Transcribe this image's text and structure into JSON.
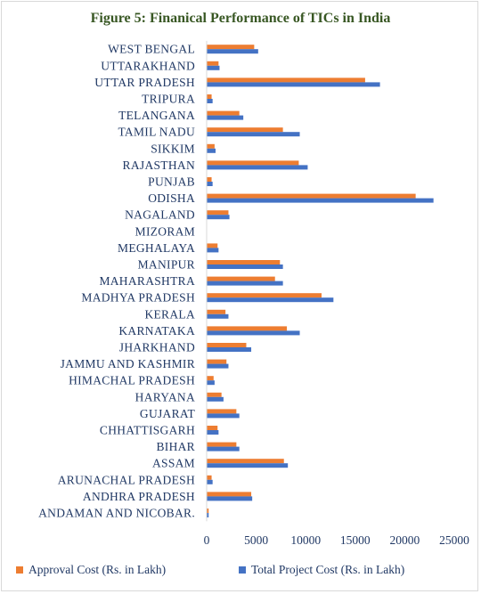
{
  "chart_data": {
    "type": "bar",
    "orientation": "horizontal",
    "title": "Figure 5: Finanical Performance of TICs  in India",
    "categories": [
      "ANDAMAN AND NICOBAR.",
      "ANDHRA PRADESH",
      "ARUNACHAL PRADESH",
      "ASSAM",
      "BIHAR",
      "CHHATTISGARH",
      "GUJARAT",
      "HARYANA",
      "HIMACHAL PRADESH",
      "JAMMU AND KASHMIR",
      "JHARKHAND",
      "KARNATAKA",
      "KERALA",
      "MADHYA PRADESH",
      "MAHARASHTRA",
      "MANIPUR",
      "MEGHALAYA",
      "MIZORAM",
      "NAGALAND",
      "ODISHA",
      "PUNJAB",
      "RAJASTHAN",
      "SIKKIM",
      "TAMIL NADU",
      "TELANGANA",
      "TRIPURA",
      "UTTAR PRADESH",
      "UTTARAKHAND",
      "WEST BENGAL"
    ],
    "series": [
      {
        "name": "Approval Cost (Rs. in Lakh)",
        "color": "#ed7d31",
        "values": [
          200,
          4500,
          500,
          7800,
          3000,
          1100,
          3000,
          1500,
          700,
          2000,
          4000,
          8100,
          1900,
          11600,
          6900,
          7400,
          1100,
          0,
          2200,
          21100,
          500,
          9300,
          800,
          7700,
          3300,
          500,
          16000,
          1200,
          4800
        ]
      },
      {
        "name": "Total Project Cost (Rs. in Lakh)",
        "color": "#4472c4",
        "values": [
          200,
          4600,
          600,
          8200,
          3300,
          1200,
          3300,
          1700,
          800,
          2200,
          4500,
          9400,
          2200,
          12800,
          7700,
          7700,
          1200,
          0,
          2300,
          22900,
          600,
          10200,
          900,
          9400,
          3700,
          600,
          17500,
          1300,
          5200
        ]
      }
    ],
    "x_ticks": [
      "0",
      "5000",
      "10000",
      "15000",
      "20000",
      "25000"
    ],
    "xlim": [
      0,
      25000
    ],
    "grid": false,
    "legend": "bottom"
  }
}
